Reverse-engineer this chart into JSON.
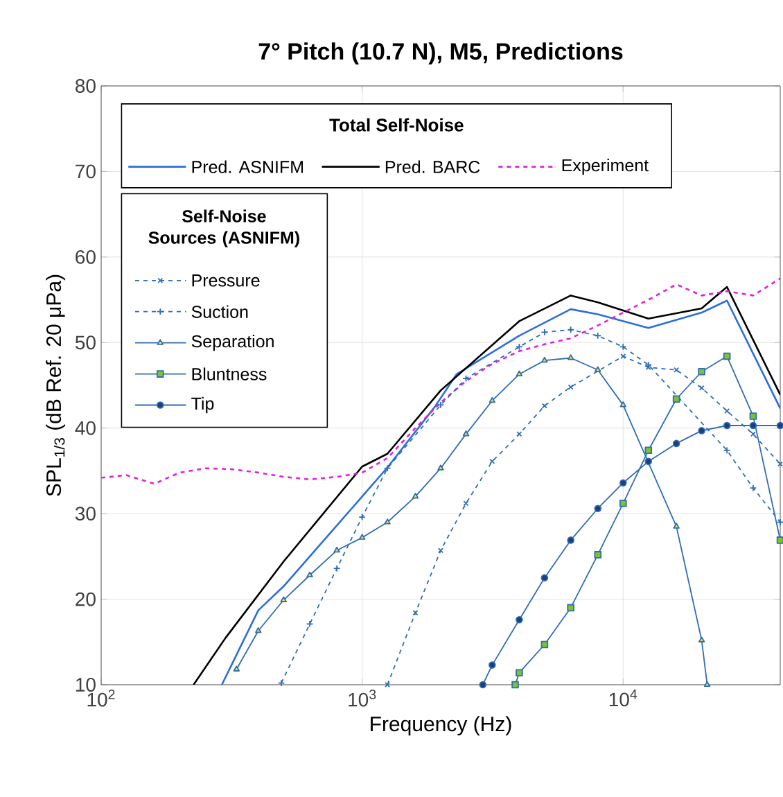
{
  "chart_data": {
    "type": "line",
    "title": "7° Pitch (10.7 N), M5, Predictions",
    "xlabel": "Frequency (Hz)",
    "ylabel": "SPL$_{1/3}$ (dB Ref. 20 μPa)",
    "legend_title": "Total Self-Noise",
    "annotations": [
      "Self-Noise Sources (ASNIFM)"
    ],
    "log": "x",
    "grid": true,
    "legend": "top left",
    "xlim": [
      100,
      40000
    ],
    "ylim": [
      10,
      80
    ],
    "xticks": [
      {
        "value": 100,
        "label": "10$^{2}$"
      },
      {
        "value": 1000,
        "label": "10$^{3}$"
      },
      {
        "value": 10000,
        "label": "10$^{4}$"
      }
    ],
    "yticks": [
      10,
      20,
      30,
      40,
      50,
      60,
      70,
      80
    ],
    "series": [
      {
        "name": "Pred. ASNIFM",
        "color": "#2a6fdb",
        "line_style": "solid",
        "marker": "none",
        "x": [
          290,
          400,
          500,
          1000,
          1250,
          1900,
          2300,
          4000,
          6300,
          8000,
          12500,
          20000,
          25000,
          40000
        ],
        "values": [
          10,
          18.7,
          21.5,
          32,
          35.4,
          42.5,
          46.3,
          50.8,
          53.9,
          53.3,
          51.7,
          53.5,
          54.9,
          42.3
        ]
      },
      {
        "name": "Pred. BARC",
        "color": "#000000",
        "line_style": "solid",
        "marker": "none",
        "x": [
          226,
          300,
          500,
          1000,
          1250,
          2000,
          4000,
          6300,
          8000,
          12500,
          20000,
          25000,
          40000
        ],
        "values": [
          10,
          15.5,
          24.4,
          35.5,
          37,
          44.4,
          52.5,
          55.5,
          54.7,
          52.8,
          54,
          56.5,
          43.9
        ]
      },
      {
        "name": "Experiment",
        "color": "#e020e0",
        "line_style": "dashed",
        "marker": "none",
        "x": [
          100,
          125,
          160,
          200,
          250,
          315,
          400,
          500,
          630,
          800,
          1000,
          1250,
          1600,
          2000,
          2500,
          3150,
          4000,
          5000,
          6300,
          8000,
          10000,
          12500,
          16000,
          20000,
          25000,
          31500,
          40000
        ],
        "values": [
          34.2,
          34.5,
          33.5,
          34.8,
          35.3,
          35.2,
          34.8,
          34.3,
          34,
          34.3,
          34.8,
          36.5,
          40,
          43,
          45.5,
          47.5,
          49,
          49.8,
          50.5,
          52,
          53.5,
          55,
          56.8,
          55.5,
          56,
          55.5,
          57.5
        ]
      },
      {
        "name": "Pressure",
        "color": "#2f6db5",
        "line_style": "dashed",
        "marker": "cross",
        "x": [
          1250,
          1600,
          2000,
          2500,
          3150,
          4000,
          5000,
          6300,
          10000,
          12500,
          16000,
          20000,
          25000,
          31500,
          40000
        ],
        "values": [
          10,
          18.4,
          25.7,
          31.2,
          36.1,
          39.3,
          42.6,
          44.8,
          48.4,
          47.1,
          46.8,
          44.7,
          42,
          39.3,
          35.8
        ]
      },
      {
        "name": "Suction",
        "color": "#2f6db5",
        "line_style": "dashed",
        "marker": "plus",
        "x": [
          490,
          630,
          800,
          1000,
          1250,
          2000,
          2500,
          4000,
          5000,
          6300,
          8000,
          10000,
          12500,
          25000,
          31500,
          40000
        ],
        "values": [
          10.2,
          17.1,
          23.6,
          29.6,
          35.3,
          42.7,
          45.8,
          49.5,
          51.2,
          51.5,
          50.8,
          49.5,
          47.4,
          37.4,
          33,
          29
        ]
      },
      {
        "name": "Separation",
        "color": "#2f6db5",
        "line_style": "solid",
        "marker": "triangle",
        "x": [
          330,
          400,
          500,
          630,
          800,
          1000,
          1250,
          1600,
          2000,
          2500,
          3150,
          4000,
          5000,
          6300,
          8000,
          10000,
          16000,
          20000,
          21000
        ],
        "values": [
          11.8,
          16.3,
          19.9,
          22.8,
          25.7,
          27.2,
          29,
          32,
          35.3,
          39.3,
          43.2,
          46.3,
          47.9,
          48.2,
          46.8,
          42.7,
          28.5,
          15.2,
          10
        ]
      },
      {
        "name": "Bluntness",
        "color": "#2f6db5",
        "line_style": "solid",
        "marker": "square",
        "x": [
          3860,
          4000,
          5000,
          6300,
          8000,
          10000,
          12500,
          16000,
          20000,
          25000,
          31500,
          40000
        ],
        "values": [
          10,
          11.4,
          14.7,
          19,
          25.2,
          31.2,
          37.4,
          43.4,
          46.6,
          48.4,
          41.4,
          26.9
        ]
      },
      {
        "name": "Tip",
        "color": "#2f6db5",
        "line_style": "solid",
        "marker": "circle",
        "x": [
          2900,
          3150,
          4000,
          5000,
          6300,
          8000,
          10000,
          12500,
          16000,
          20000,
          25000,
          31500,
          40000
        ],
        "values": [
          10,
          12.3,
          17.6,
          22.5,
          26.9,
          30.6,
          33.6,
          36.1,
          38.2,
          39.7,
          40.3,
          40.3,
          40.3
        ]
      }
    ]
  }
}
